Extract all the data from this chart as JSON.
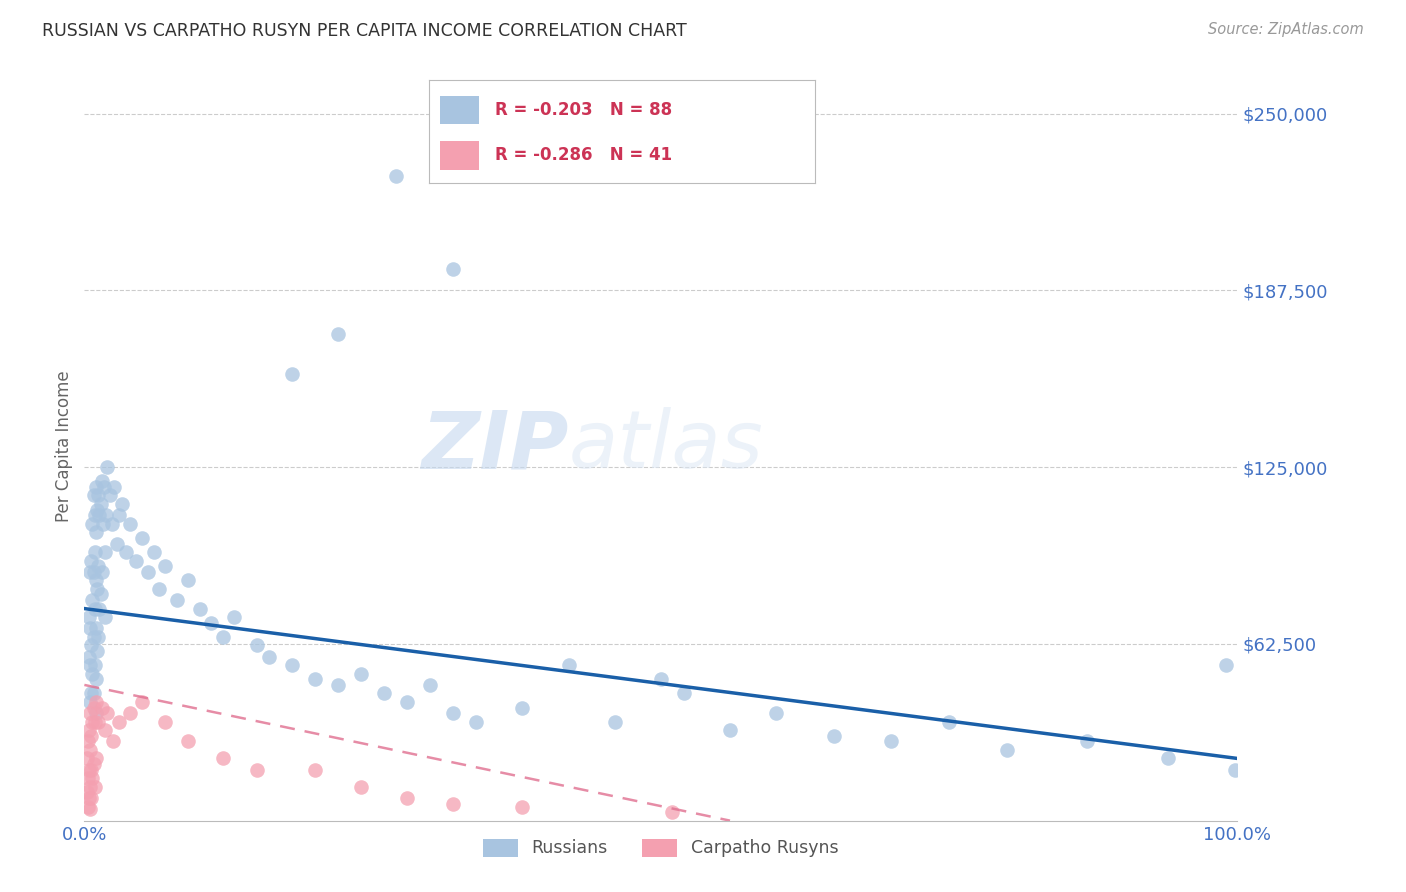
{
  "title": "RUSSIAN VS CARPATHO RUSYN PER CAPITA INCOME CORRELATION CHART",
  "source": "Source: ZipAtlas.com",
  "ylabel": "Per Capita Income",
  "ytick_values": [
    250000,
    187500,
    125000,
    62500
  ],
  "ymin": 0,
  "ymax": 265000,
  "xmin": 0.0,
  "xmax": 1.0,
  "watermark_zip": "ZIP",
  "watermark_atlas": "atlas",
  "russian_color": "#a8c4e0",
  "carpatho_color": "#f4a0b0",
  "russian_line_color": "#1a5fa8",
  "carpatho_line_color": "#e07090",
  "background_color": "#ffffff",
  "grid_color": "#cccccc",
  "tick_color": "#4472c4",
  "ylabel_color": "#666666",
  "title_color": "#333333",
  "source_color": "#999999",
  "legend_text_color": "#cc3355",
  "bottom_legend_color": "#555555",
  "russian_line_x": [
    0.0,
    1.0
  ],
  "russian_line_y": [
    75000,
    22000
  ],
  "carpatho_line_x": [
    0.0,
    0.56
  ],
  "carpatho_line_y": [
    48000,
    0
  ],
  "russian_x": [
    0.004,
    0.004,
    0.005,
    0.005,
    0.005,
    0.005,
    0.006,
    0.006,
    0.006,
    0.007,
    0.007,
    0.007,
    0.008,
    0.008,
    0.008,
    0.008,
    0.009,
    0.009,
    0.009,
    0.009,
    0.01,
    0.01,
    0.01,
    0.01,
    0.01,
    0.01,
    0.011,
    0.011,
    0.011,
    0.012,
    0.012,
    0.012,
    0.013,
    0.013,
    0.014,
    0.014,
    0.015,
    0.015,
    0.016,
    0.017,
    0.018,
    0.018,
    0.019,
    0.02,
    0.022,
    0.024,
    0.026,
    0.028,
    0.03,
    0.033,
    0.036,
    0.04,
    0.045,
    0.05,
    0.055,
    0.06,
    0.065,
    0.07,
    0.08,
    0.09,
    0.1,
    0.11,
    0.12,
    0.13,
    0.15,
    0.16,
    0.18,
    0.2,
    0.22,
    0.24,
    0.26,
    0.28,
    0.3,
    0.32,
    0.34,
    0.38,
    0.42,
    0.46,
    0.5,
    0.52,
    0.56,
    0.6,
    0.65,
    0.7,
    0.75,
    0.8,
    0.87,
    0.94,
    0.99,
    0.998,
    0.18,
    0.27,
    0.32,
    0.22
  ],
  "russian_y": [
    72000,
    58000,
    88000,
    68000,
    55000,
    42000,
    92000,
    62000,
    45000,
    105000,
    78000,
    52000,
    115000,
    88000,
    65000,
    45000,
    108000,
    95000,
    75000,
    55000,
    118000,
    102000,
    85000,
    68000,
    50000,
    38000,
    110000,
    82000,
    60000,
    115000,
    90000,
    65000,
    108000,
    75000,
    112000,
    80000,
    120000,
    88000,
    105000,
    118000,
    95000,
    72000,
    108000,
    125000,
    115000,
    105000,
    118000,
    98000,
    108000,
    112000,
    95000,
    105000,
    92000,
    100000,
    88000,
    95000,
    82000,
    90000,
    78000,
    85000,
    75000,
    70000,
    65000,
    72000,
    62000,
    58000,
    55000,
    50000,
    48000,
    52000,
    45000,
    42000,
    48000,
    38000,
    35000,
    40000,
    55000,
    35000,
    50000,
    45000,
    32000,
    38000,
    30000,
    28000,
    35000,
    25000,
    28000,
    22000,
    55000,
    18000,
    158000,
    228000,
    195000,
    172000
  ],
  "carpatho_x": [
    0.002,
    0.002,
    0.003,
    0.003,
    0.003,
    0.004,
    0.004,
    0.004,
    0.005,
    0.005,
    0.005,
    0.005,
    0.006,
    0.006,
    0.006,
    0.007,
    0.007,
    0.008,
    0.008,
    0.009,
    0.009,
    0.01,
    0.01,
    0.012,
    0.015,
    0.018,
    0.02,
    0.025,
    0.03,
    0.04,
    0.05,
    0.07,
    0.09,
    0.12,
    0.15,
    0.2,
    0.24,
    0.28,
    0.32,
    0.38,
    0.51
  ],
  "carpatho_y": [
    22000,
    10000,
    28000,
    15000,
    5000,
    32000,
    18000,
    8000,
    38000,
    25000,
    12000,
    4000,
    30000,
    18000,
    8000,
    35000,
    15000,
    40000,
    20000,
    35000,
    12000,
    42000,
    22000,
    35000,
    40000,
    32000,
    38000,
    28000,
    35000,
    38000,
    42000,
    35000,
    28000,
    22000,
    18000,
    18000,
    12000,
    8000,
    6000,
    5000,
    3000
  ]
}
